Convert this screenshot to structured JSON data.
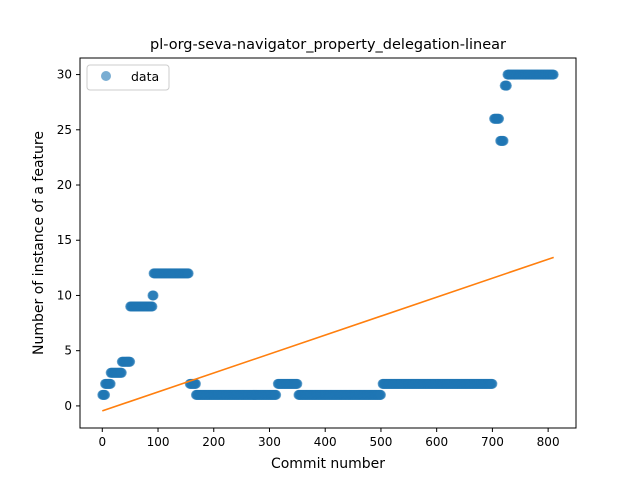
{
  "chart_data": {
    "type": "scatter",
    "title": "pl-org-seva-navigator_property_delegation-linear",
    "xlabel": "Commit number",
    "ylabel": "Number of instance of a feature",
    "xlim": [
      -40,
      850
    ],
    "ylim": [
      -2,
      31.5
    ],
    "xticks": [
      "0",
      "100",
      "200",
      "300",
      "400",
      "500",
      "600",
      "700",
      "800"
    ],
    "yticks": [
      "0",
      "5",
      "10",
      "15",
      "20",
      "25",
      "30"
    ],
    "legend": {
      "position": "upper-left",
      "entries": [
        "data"
      ]
    },
    "grid": false,
    "colors": {
      "points": "#1f77b4",
      "fit_line": "#ff7f0e"
    },
    "series": [
      {
        "name": "data",
        "kind": "points",
        "segments": [
          {
            "x_start": 0,
            "x_end": 5,
            "y": 1
          },
          {
            "x_start": 5,
            "x_end": 15,
            "y": 2
          },
          {
            "x_start": 15,
            "x_end": 35,
            "y": 3
          },
          {
            "x_start": 35,
            "x_end": 50,
            "y": 4
          },
          {
            "x_start": 50,
            "x_end": 90,
            "y": 9
          },
          {
            "x_start": 90,
            "x_end": 92,
            "y": 10
          },
          {
            "x_start": 92,
            "x_end": 155,
            "y": 12
          },
          {
            "x_start": 157,
            "x_end": 168,
            "y": 2
          },
          {
            "x_start": 168,
            "x_end": 312,
            "y": 1
          },
          {
            "x_start": 315,
            "x_end": 350,
            "y": 2
          },
          {
            "x_start": 352,
            "x_end": 500,
            "y": 1
          },
          {
            "x_start": 503,
            "x_end": 700,
            "y": 2
          },
          {
            "x_start": 703,
            "x_end": 712,
            "y": 26
          },
          {
            "x_start": 714,
            "x_end": 720,
            "y": 24
          },
          {
            "x_start": 722,
            "x_end": 726,
            "y": 29
          },
          {
            "x_start": 727,
            "x_end": 810,
            "y": 30
          }
        ]
      },
      {
        "kind": "line",
        "x": [
          0,
          810
        ],
        "y": [
          -0.45,
          13.45
        ]
      }
    ]
  }
}
